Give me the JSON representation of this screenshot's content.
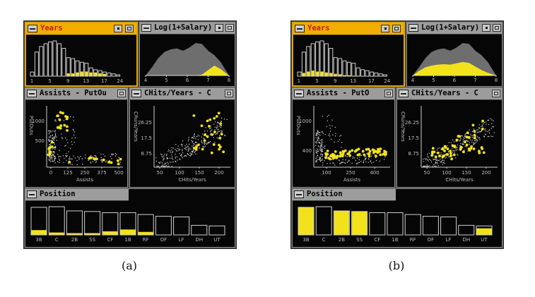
{
  "colors": {
    "highlight": "#f2e21b",
    "selection_border": "#e3a400",
    "bar_outline": "#cfcfcf",
    "area_gray": "#6e6e6e",
    "point": "#d8d8d8"
  },
  "icons": [
    "window-menu-icon",
    "dot-icon",
    "maximize-icon"
  ],
  "panels": [
    {
      "caption": "(a)",
      "years": {
        "title": "Years",
        "ticks": [
          "1",
          "5",
          "9",
          "13",
          "17",
          "24"
        ],
        "chart_data": {
          "type": "bar",
          "values": [
            9,
            52,
            64,
            70,
            74,
            76,
            70,
            60,
            40,
            38,
            33,
            30,
            28,
            18,
            14,
            12,
            9,
            7,
            5,
            3
          ],
          "highlight": [
            0,
            0,
            0,
            0,
            0,
            0,
            0,
            0,
            6,
            6,
            8,
            10,
            10,
            8,
            8,
            6,
            5,
            0,
            0,
            0
          ]
        }
      },
      "salary": {
        "title": "Log(1+Salary)",
        "ticks": [
          "4",
          "5",
          "6",
          "7",
          "8"
        ],
        "chart_data": {
          "type": "area",
          "x": [
            4,
            4.3,
            4.6,
            4.9,
            5.2,
            5.5,
            5.8,
            6.1,
            6.4,
            6.7,
            7,
            7.3,
            7.6,
            8
          ],
          "total": [
            0,
            18,
            38,
            52,
            58,
            60,
            55,
            62,
            72,
            70,
            55,
            45,
            30,
            0
          ],
          "selected": [
            0,
            0,
            0,
            0,
            0,
            0,
            0,
            0,
            0,
            2,
            12,
            22,
            14,
            0
          ]
        }
      },
      "assists": {
        "title": "Assists  - PutOu",
        "xlabel": "Assists",
        "ylabel": "PutOuts",
        "xticks": [
          "0",
          "125",
          "250",
          "375",
          "500"
        ],
        "yticks": [
          "1000",
          "500"
        ]
      },
      "chits": {
        "title": "CHits/Years  - C",
        "xlabel": "CHits/Years",
        "ylabel": "CRuns/Years",
        "xticks": [
          "50",
          "100",
          "150",
          "200"
        ],
        "yticks": [
          "26.25",
          "17.5",
          "8.75"
        ]
      },
      "position": {
        "title": "Position",
        "chart_data": {
          "type": "bar",
          "categories": [
            "3B",
            "C",
            "2B",
            "SS",
            "CF",
            "1B",
            "RF",
            "OF",
            "LF",
            "DH",
            "UT"
          ],
          "values": [
            46,
            47,
            40,
            39,
            37,
            37,
            34,
            31,
            30,
            16,
            15
          ],
          "highlight": [
            8,
            4,
            3,
            3,
            6,
            9,
            5,
            0,
            0,
            0,
            0
          ]
        }
      }
    },
    {
      "caption": "(b)",
      "years": {
        "title": "Years",
        "ticks": [
          "1",
          "5",
          "9",
          "13",
          "17",
          "24"
        ],
        "chart_data": {
          "type": "bar",
          "values": [
            9,
            52,
            64,
            70,
            74,
            76,
            70,
            60,
            40,
            38,
            33,
            30,
            28,
            18,
            14,
            12,
            9,
            7,
            5,
            3
          ],
          "highlight": [
            0,
            7,
            10,
            12,
            10,
            10,
            8,
            7,
            5,
            4,
            2,
            2,
            1,
            1,
            0,
            0,
            0,
            0,
            0,
            0
          ]
        }
      },
      "salary": {
        "title": "Log(1+Salary)",
        "ticks": [
          "4",
          "5",
          "6",
          "7",
          "8"
        ],
        "chart_data": {
          "type": "area",
          "x": [
            4,
            4.3,
            4.6,
            4.9,
            5.2,
            5.5,
            5.8,
            6.1,
            6.4,
            6.7,
            7,
            7.3,
            7.6,
            8
          ],
          "total": [
            0,
            18,
            38,
            52,
            58,
            60,
            55,
            62,
            72,
            70,
            55,
            45,
            30,
            0
          ],
          "selected": [
            0,
            10,
            18,
            22,
            24,
            25,
            24,
            27,
            30,
            28,
            20,
            12,
            6,
            0
          ]
        }
      },
      "assists": {
        "title": "Assists  - PutO",
        "xlabel": "Assists",
        "ylabel": "PutOuts",
        "xticks": [
          "100",
          "250",
          "400"
        ],
        "yticks": [
          "1000",
          "400"
        ]
      },
      "chits": {
        "title": "CHits/Years  - C",
        "xlabel": "CHits/Years",
        "ylabel": "CRuns/Years",
        "xticks": [
          "50",
          "100",
          "150",
          "200"
        ],
        "yticks": [
          "26.25",
          "17.5",
          "8.75"
        ]
      },
      "position": {
        "title": "Position",
        "chart_data": {
          "type": "bar",
          "categories": [
            "3B",
            "C",
            "2B",
            "SS",
            "CF",
            "1B",
            "RF",
            "OF",
            "LF",
            "DH",
            "UT"
          ],
          "values": [
            46,
            47,
            40,
            39,
            37,
            37,
            34,
            31,
            30,
            16,
            15
          ],
          "highlight": [
            46,
            0,
            40,
            39,
            0,
            0,
            0,
            0,
            0,
            0,
            11
          ]
        }
      }
    }
  ]
}
